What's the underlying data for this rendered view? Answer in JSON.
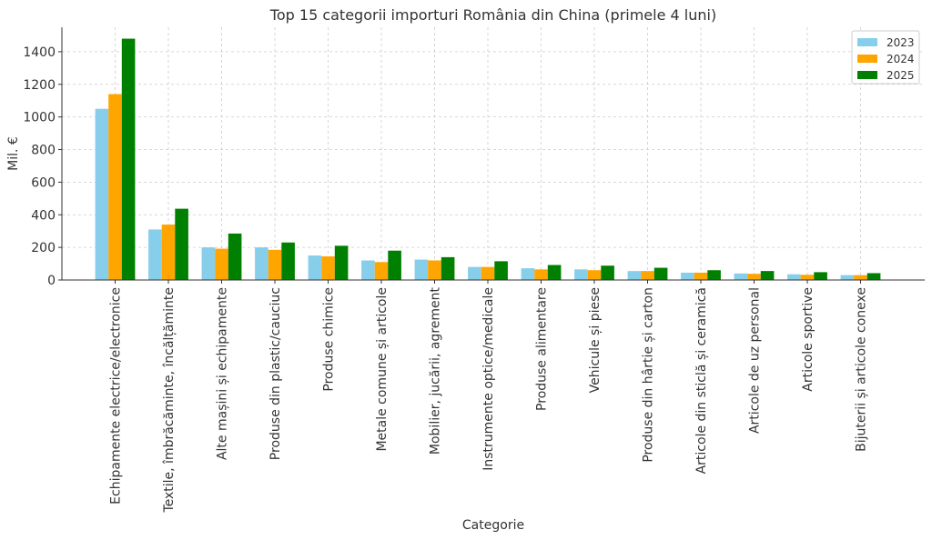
{
  "chart_data": {
    "type": "bar",
    "title": "Top 15 categorii importuri România din China (primele 4 luni)",
    "xlabel": "Categorie",
    "ylabel": "Mil. €",
    "ylim": [
      0,
      1550
    ],
    "yticks": [
      0,
      200,
      400,
      600,
      800,
      1000,
      1200,
      1400
    ],
    "grid": true,
    "legend_position": "top-right",
    "categories": [
      "Echipamente electrice/electronice",
      "Textile, îmbrăcăminte, încălțăminte",
      "Alte mașini și echipamente",
      "Produse din plastic/cauciuc",
      "Produse chimice",
      "Metale comune și articole",
      "Mobilier, jucării, agrement",
      "Instrumente optice/medicale",
      "Produse alimentare",
      "Vehicule și piese",
      "Produse din hârtie și carton",
      "Articole din sticlă și ceramică",
      "Articole de uz personal",
      "Articole sportive",
      "Bijuterii și articole conexe"
    ],
    "series": [
      {
        "name": "2023",
        "color": "#87CEEB",
        "values": [
          1050,
          310,
          200,
          200,
          150,
          120,
          125,
          80,
          72,
          65,
          55,
          45,
          40,
          35,
          30
        ]
      },
      {
        "name": "2024",
        "color": "#FFA500",
        "values": [
          1140,
          340,
          192,
          185,
          145,
          110,
          120,
          80,
          65,
          60,
          55,
          45,
          38,
          32,
          30
        ]
      },
      {
        "name": "2025",
        "color": "#008000",
        "values": [
          1480,
          437,
          285,
          230,
          210,
          180,
          140,
          115,
          92,
          88,
          75,
          60,
          55,
          48,
          42
        ]
      }
    ]
  }
}
